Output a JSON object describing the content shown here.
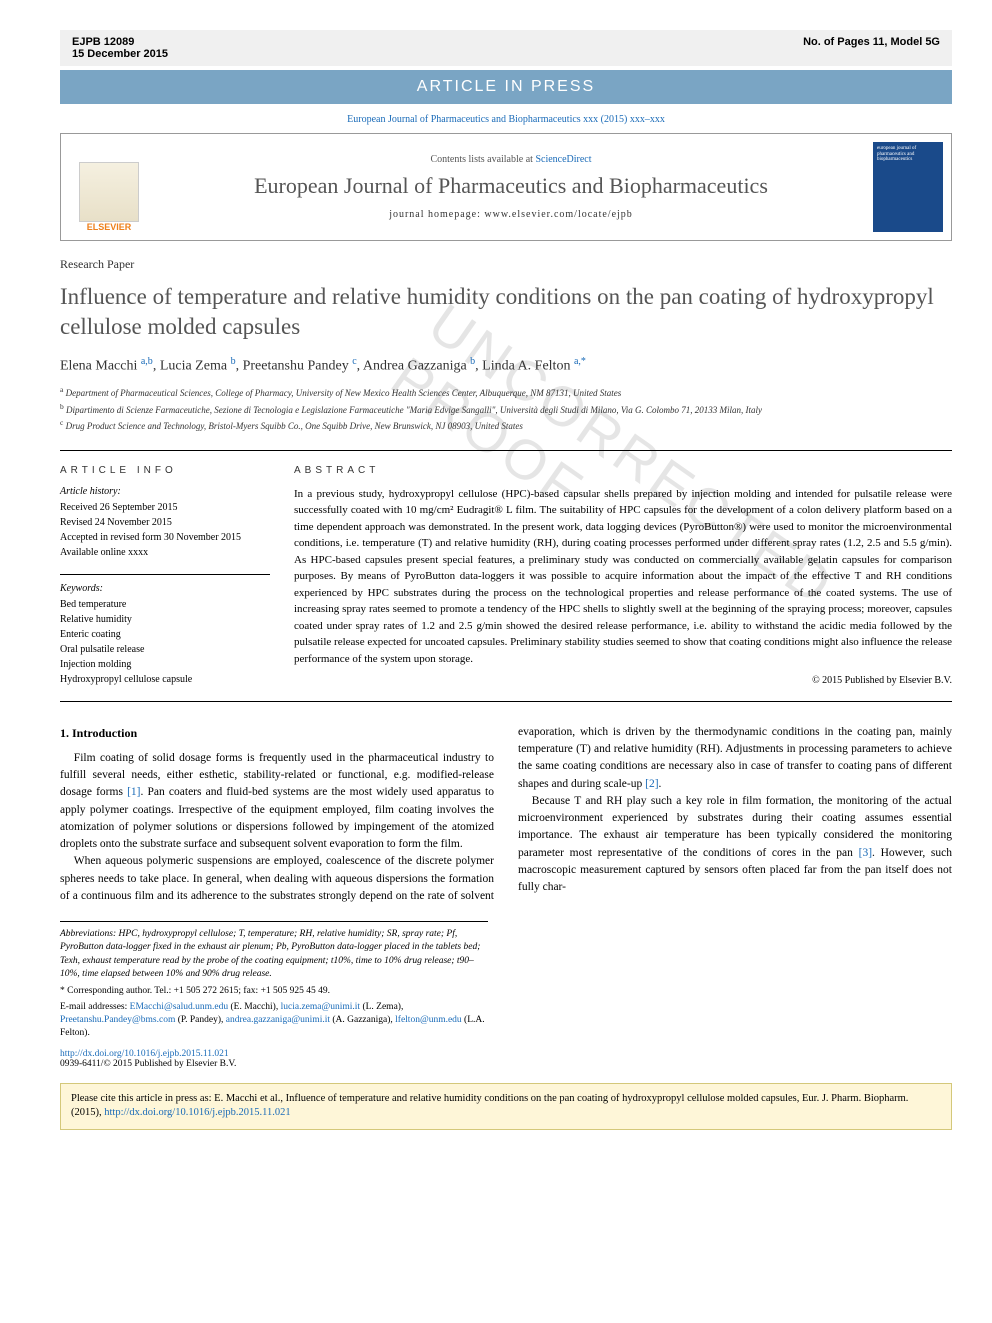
{
  "proof": {
    "id": "EJPB 12089",
    "date": "15 December 2015",
    "model": "No. of Pages 11, Model 5G"
  },
  "banner": "ARTICLE IN PRESS",
  "running_head": "European Journal of Pharmaceutics and Biopharmaceutics xxx (2015) xxx–xxx",
  "header": {
    "contents_prefix": "Contents lists available at ",
    "contents_link": "ScienceDirect",
    "journal": "European Journal of Pharmaceutics and Biopharmaceutics",
    "homepage_label": "journal homepage: www.elsevier.com/locate/ejpb",
    "logo_text": "ELSEVIER",
    "cover_text": "european journal of pharmaceutics and biopharmaceutics"
  },
  "article_type": "Research Paper",
  "title": "Influence of temperature and relative humidity conditions on the pan coating of hydroxypropyl cellulose molded capsules",
  "authors_html": "Elena Macchi <sup>a,b</sup>, Lucia Zema <sup>b</sup>, Preetanshu Pandey <sup>c</sup>, Andrea Gazzaniga <sup>b</sup>, Linda A. Felton <sup>a,*</sup>",
  "affiliations": [
    "a Department of Pharmaceutical Sciences, College of Pharmacy, University of New Mexico Health Sciences Center, Albuquerque, NM 87131, United States",
    "b Dipartimento di Scienze Farmaceutiche, Sezione di Tecnologia e Legislazione Farmaceutiche \"Maria Edvige Sangalli\", Università degli Studi di Milano, Via G. Colombo 71, 20133 Milan, Italy",
    "c Drug Product Science and Technology, Bristol-Myers Squibb Co., One Squibb Drive, New Brunswick, NJ 08903, United States"
  ],
  "article_info_heading": "ARTICLE INFO",
  "abstract_heading": "ABSTRACT",
  "history_heading": "Article history:",
  "history": [
    "Received 26 September 2015",
    "Revised 24 November 2015",
    "Accepted in revised form 30 November 2015",
    "Available online xxxx"
  ],
  "keywords_heading": "Keywords:",
  "keywords": [
    "Bed temperature",
    "Relative humidity",
    "Enteric coating",
    "Oral pulsatile release",
    "Injection molding",
    "Hydroxypropyl cellulose capsule"
  ],
  "abstract": "In a previous study, hydroxypropyl cellulose (HPC)-based capsular shells prepared by injection molding and intended for pulsatile release were successfully coated with 10 mg/cm² Eudragit® L film. The suitability of HPC capsules for the development of a colon delivery platform based on a time dependent approach was demonstrated. In the present work, data logging devices (PyroButton®) were used to monitor the microenvironmental conditions, i.e. temperature (T) and relative humidity (RH), during coating processes performed under different spray rates (1.2, 2.5 and 5.5 g/min). As HPC-based capsules present special features, a preliminary study was conducted on commercially available gelatin capsules for comparison purposes. By means of PyroButton data-loggers it was possible to acquire information about the impact of the effective T and RH conditions experienced by HPC substrates during the process on the technological properties and release performance of the coated systems. The use of increasing spray rates seemed to promote a tendency of the HPC shells to slightly swell at the beginning of the spraying process; moreover, capsules coated under spray rates of 1.2 and 2.5 g/min showed the desired release performance, i.e. ability to withstand the acidic media followed by the pulsatile release expected for uncoated capsules. Preliminary stability studies seemed to show that coating conditions might also influence the release performance of the system upon storage.",
  "copyright": "© 2015 Published by Elsevier B.V.",
  "body": {
    "heading": "1. Introduction",
    "p1": "Film coating of solid dosage forms is frequently used in the pharmaceutical industry to fulfill several needs, either esthetic, stability-related or functional, e.g. modified-release dosage forms [1]. Pan coaters and fluid-bed systems are the most widely used apparatus to apply polymer coatings. Irrespective of the equipment employed, film coating involves the atomization of polymer solutions or dispersions followed by impingement of the atomized droplets onto the substrate surface and subsequent solvent evaporation to form the film.",
    "p2": "When aqueous polymeric suspensions are employed, coalescence of the discrete polymer spheres needs to take place. In general, when dealing with aqueous dispersions the formation of a continuous film and its adherence to the substrates strongly depend on the rate of solvent evaporation, which is driven by the thermodynamic conditions in the coating pan, mainly temperature (T) and relative humidity (RH). Adjustments in processing parameters to achieve the same coating conditions are necessary also in case of transfer to coating pans of different shapes and during scale-up [2].",
    "p3": "Because T and RH play such a key role in film formation, the monitoring of the actual microenvironment experienced by substrates during their coating assumes essential importance. The exhaust air temperature has been typically considered the monitoring parameter most representative of the conditions of cores in the pan [3]. However, such macroscopic measurement captured by sensors often placed far from the pan itself does not fully char-"
  },
  "footnotes": {
    "abbrev": "Abbreviations: HPC, hydroxypropyl cellulose; T, temperature; RH, relative humidity; SR, spray rate; Pf, PyroButton data-logger fixed in the exhaust air plenum; Pb, PyroButton data-logger placed in the tablets bed; Texh, exhaust temperature read by the probe of the coating equipment; t10%, time to 10% drug release; t90–10%, time elapsed between 10% and 90% drug release.",
    "corr": "* Corresponding author. Tel.: +1 505 272 2615; fax: +1 505 925 45 49.",
    "emails": "E-mail addresses: EMacchi@salud.unm.edu (E. Macchi), lucia.zema@unimi.it (L. Zema), Preetanshu.Pandey@bms.com (P. Pandey), andrea.gazzaniga@unimi.it (A. Gazzaniga), lfelton@unm.edu (L.A. Felton)."
  },
  "doi": {
    "url": "http://dx.doi.org/10.1016/j.ejpb.2015.11.021",
    "issn": "0939-6411/© 2015 Published by Elsevier B.V."
  },
  "cite": {
    "text": "Please cite this article in press as: E. Macchi et al., Influence of temperature and relative humidity conditions on the pan coating of hydroxypropyl cellulose molded capsules, Eur. J. Pharm. Biopharm. (2015), ",
    "link": "http://dx.doi.org/10.1016/j.ejpb.2015.11.021"
  },
  "watermark": "UNCORRECTED PROOF",
  "line_nums_left": [
    "1",
    "2",
    "6",
    "4",
    "7",
    "5",
    "8",
    "9",
    "10",
    "11",
    "12",
    "13",
    "14",
    "15",
    "16",
    "17",
    "18",
    "19",
    "20",
    "21",
    "22",
    "23",
    "24",
    "25",
    "26",
    "27",
    "28",
    "29",
    "50",
    "51",
    "52",
    "53",
    "54",
    "55",
    "56",
    "57",
    "58"
  ],
  "line_nums_right": [
    "31",
    "32",
    "33",
    "34",
    "35",
    "36",
    "37",
    "38",
    "39",
    "40",
    "41",
    "42",
    "43",
    "44",
    "45",
    "46",
    "47",
    "48",
    "49",
    "59",
    "60",
    "61",
    "62",
    "63",
    "64",
    "65",
    "66",
    "67",
    "68",
    "69",
    "70",
    "71",
    "72",
    "73",
    "74",
    "75",
    "76",
    "77"
  ]
}
